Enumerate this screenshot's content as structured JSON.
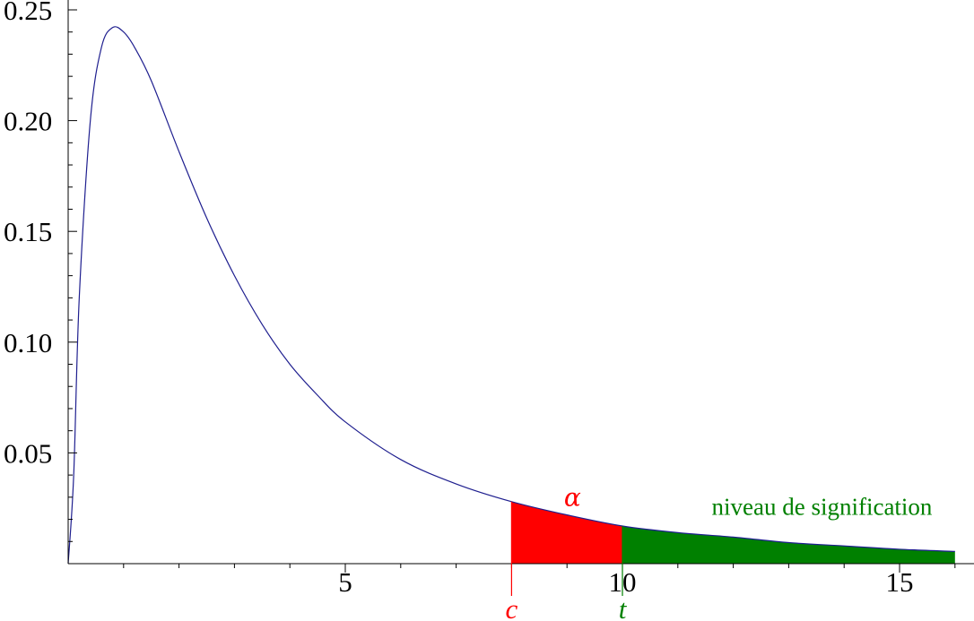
{
  "chart_data": {
    "type": "area",
    "title": "",
    "xlabel": "",
    "ylabel": "",
    "xlim": [
      0,
      16
    ],
    "ylim": [
      0,
      0.25
    ],
    "x_ticks": [
      5,
      10,
      15
    ],
    "x_tick_labels": [
      "5",
      "10",
      "15"
    ],
    "y_ticks": [
      0.05,
      0.1,
      0.15,
      0.2,
      0.25
    ],
    "y_tick_labels": [
      "0.05",
      "0.10",
      "0.15",
      "0.20",
      "0.25"
    ],
    "grid": false,
    "series": [
      {
        "color": "#1f1f8f",
        "x": [
          0,
          0.1,
          0.2,
          0.4,
          0.6,
          0.8,
          1.0,
          1.2,
          1.5,
          2.0,
          2.5,
          3.0,
          3.5,
          4.0,
          4.5,
          5.0,
          6.0,
          7.0,
          8.0,
          9.0,
          10.0,
          11.0,
          12.0,
          13.0,
          14.0,
          15.0,
          16.0
        ],
        "y": [
          0,
          0.04,
          0.12,
          0.2,
          0.233,
          0.242,
          0.24,
          0.233,
          0.218,
          0.186,
          0.156,
          0.13,
          0.108,
          0.09,
          0.076,
          0.064,
          0.047,
          0.036,
          0.028,
          0.022,
          0.017,
          0.014,
          0.012,
          0.0095,
          0.008,
          0.0065,
          0.0055
        ]
      }
    ],
    "shaded_regions": [
      {
        "from": 8,
        "to": 10,
        "color": "#ff0000"
      },
      {
        "from": 10,
        "to": 16,
        "color": "#008000"
      }
    ],
    "markers": [
      {
        "x": 8,
        "label": "c",
        "color": "#ff0000"
      },
      {
        "x": 10,
        "label": "t",
        "color": "#008000"
      }
    ],
    "annotations": [
      {
        "text": "α",
        "x": 9.1,
        "y": 0.026,
        "color": "#ff0000"
      },
      {
        "text": "niveau de signification",
        "x": 13.6,
        "y": 0.022,
        "color": "#008000"
      }
    ]
  }
}
